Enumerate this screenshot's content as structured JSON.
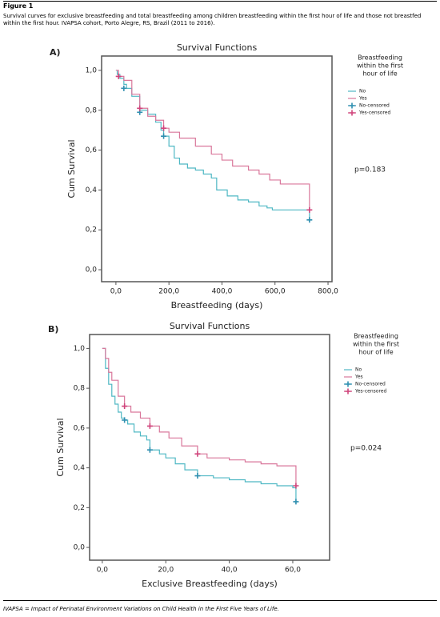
{
  "figure": {
    "label": "Figure 1",
    "caption": "Survival curves for exclusive breastfeeding and total breastfeeding among children breastfeeding within the first hour of life and those not breastfed within the first hour. IVAPSA cohort, Porto Alegre, RS, Brazil (2011 to 2016).",
    "footnote": "IVAPSA = Impact of Perinatal Environment Variations on Child Health in the First Five Years of Life."
  },
  "chart_data": [
    {
      "type": "step",
      "panel": "A)",
      "title": "Survival Functions",
      "xlabel": "Breastfeeding (days)",
      "ylabel": "Cum Survival",
      "legend_title": [
        "Breastfeeding",
        "within the first",
        "hour of life"
      ],
      "annotation": "p=0.183",
      "xlim": [
        -54,
        815
      ],
      "ylim": [
        -0.06,
        1.072
      ],
      "xticks": [
        {
          "value": 0,
          "label": "0,0"
        },
        {
          "value": 200,
          "label": "200,0"
        },
        {
          "value": 400,
          "label": "400,0"
        },
        {
          "value": 600,
          "label": "600,0"
        },
        {
          "value": 800,
          "label": "800,0"
        }
      ],
      "yticks": [
        {
          "value": 0,
          "label": "0,0"
        },
        {
          "value": 0.2,
          "label": "0,2"
        },
        {
          "value": 0.4,
          "label": "0,4"
        },
        {
          "value": 0.6,
          "label": "0,6"
        },
        {
          "value": 0.8,
          "label": "0,8"
        },
        {
          "value": 1,
          "label": "1,0"
        }
      ],
      "series": [
        {
          "name": "No",
          "color": "#4fb8c4",
          "style": "step",
          "x": [
            0,
            5,
            15,
            30,
            40,
            60,
            90,
            120,
            150,
            170,
            180,
            200,
            220,
            240,
            270,
            300,
            330,
            360,
            380,
            420,
            460,
            500,
            540,
            570,
            590,
            730,
            730
          ],
          "values": [
            1.0,
            0.98,
            0.96,
            0.93,
            0.91,
            0.87,
            0.8,
            0.78,
            0.74,
            0.7,
            0.67,
            0.62,
            0.56,
            0.53,
            0.51,
            0.5,
            0.48,
            0.46,
            0.4,
            0.37,
            0.35,
            0.34,
            0.32,
            0.31,
            0.3,
            0.3,
            0.25
          ]
        },
        {
          "name": "Yes",
          "color": "#d9779b",
          "style": "step",
          "x": [
            0,
            10,
            30,
            60,
            90,
            120,
            150,
            180,
            200,
            240,
            300,
            360,
            400,
            440,
            500,
            540,
            580,
            620,
            730
          ],
          "values": [
            1.0,
            0.97,
            0.95,
            0.88,
            0.81,
            0.77,
            0.75,
            0.71,
            0.69,
            0.66,
            0.62,
            0.58,
            0.55,
            0.52,
            0.5,
            0.48,
            0.45,
            0.43,
            0.3
          ]
        },
        {
          "name": "No-censored",
          "color": "#2f8fb0",
          "style": "plus",
          "x": [
            30,
            90,
            180,
            730
          ],
          "values": [
            0.91,
            0.79,
            0.67,
            0.25
          ]
        },
        {
          "name": "Yes-censored",
          "color": "#d0457c",
          "style": "plus",
          "x": [
            10,
            90,
            180,
            730
          ],
          "values": [
            0.97,
            0.81,
            0.71,
            0.3
          ]
        }
      ]
    },
    {
      "type": "step",
      "panel": "B)",
      "title": "Survival Functions",
      "xlabel": "Exclusive Breastfeeding (days)",
      "ylabel": "Cum Survival",
      "legend_title": [
        "Breastfeeding",
        "within the first",
        "hour of life"
      ],
      "annotation": "p=0.024",
      "xlim": [
        -4,
        71.6
      ],
      "ylim": [
        -0.064,
        1.07
      ],
      "xticks": [
        {
          "value": 0,
          "label": "0,0"
        },
        {
          "value": 20,
          "label": "20,0"
        },
        {
          "value": 40,
          "label": "40,0"
        },
        {
          "value": 60,
          "label": "60,0"
        }
      ],
      "yticks": [
        {
          "value": 0,
          "label": "0,0"
        },
        {
          "value": 0.2,
          "label": "0,2"
        },
        {
          "value": 0.4,
          "label": "0,4"
        },
        {
          "value": 0.6,
          "label": "0,6"
        },
        {
          "value": 0.8,
          "label": "0,8"
        },
        {
          "value": 1,
          "label": "1,0"
        }
      ],
      "series": [
        {
          "name": "No",
          "color": "#4fb8c4",
          "style": "step",
          "x": [
            0,
            1,
            2,
            3,
            4,
            5,
            6,
            7,
            8,
            10,
            12,
            14,
            15,
            18,
            20,
            23,
            26,
            30,
            35,
            40,
            45,
            50,
            55,
            60,
            61
          ],
          "values": [
            1.0,
            0.9,
            0.82,
            0.76,
            0.72,
            0.68,
            0.65,
            0.64,
            0.62,
            0.58,
            0.56,
            0.54,
            0.49,
            0.47,
            0.45,
            0.42,
            0.39,
            0.36,
            0.35,
            0.34,
            0.33,
            0.32,
            0.31,
            0.3,
            0.23
          ]
        },
        {
          "name": "Yes",
          "color": "#d9779b",
          "style": "step",
          "x": [
            0,
            1,
            2,
            3,
            5,
            7,
            9,
            12,
            15,
            18,
            21,
            25,
            30,
            33,
            40,
            45,
            50,
            55,
            61
          ],
          "values": [
            1.0,
            0.95,
            0.88,
            0.84,
            0.76,
            0.71,
            0.68,
            0.65,
            0.61,
            0.58,
            0.55,
            0.51,
            0.47,
            0.45,
            0.44,
            0.43,
            0.42,
            0.41,
            0.31
          ]
        },
        {
          "name": "No-censored",
          "color": "#2f8fb0",
          "style": "plus",
          "x": [
            7,
            15,
            30,
            61
          ],
          "values": [
            0.64,
            0.49,
            0.36,
            0.23
          ]
        },
        {
          "name": "Yes-censored",
          "color": "#d0457c",
          "style": "plus",
          "x": [
            7,
            15,
            30,
            61
          ],
          "values": [
            0.71,
            0.61,
            0.47,
            0.31
          ]
        }
      ]
    }
  ]
}
